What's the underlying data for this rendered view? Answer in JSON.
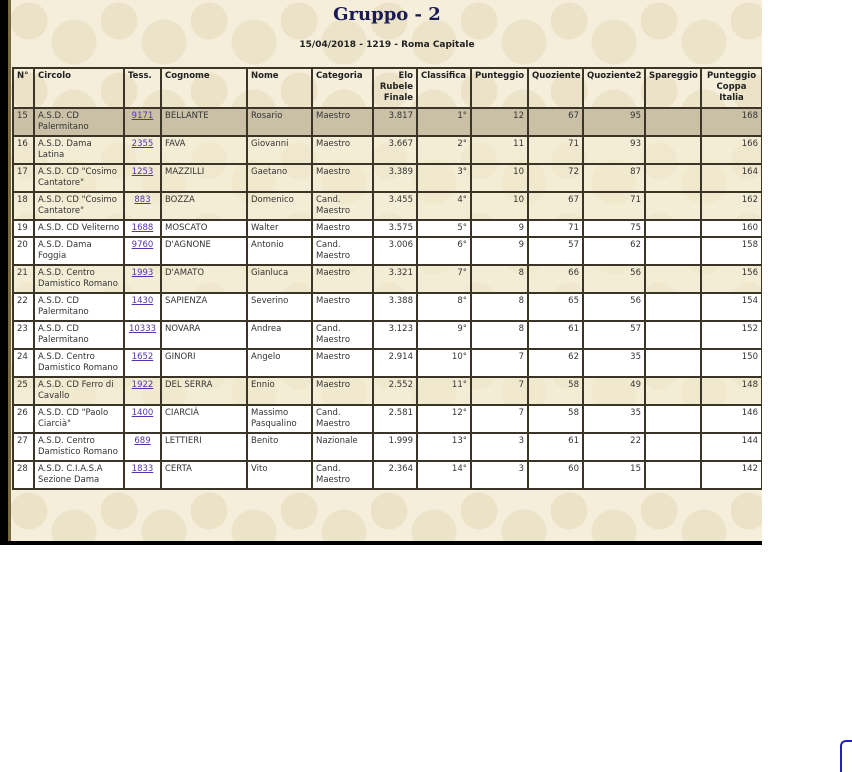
{
  "title": "Gruppo - 2",
  "subtitle": "15/04/2018 - 1219 - Roma Capitale",
  "columns": [
    "N°",
    "Circolo",
    "Tess.",
    "Cognome",
    "Nome",
    "Categoria",
    "Elo Rubele Finale",
    "Classifica",
    "Punteggio",
    "Quoziente",
    "Quoziente2",
    "Spareggio",
    "Punteggio Coppa Italia"
  ],
  "colors": {
    "highlight_row": "#c9c0a6",
    "link": "#5533aa",
    "frame": "#000000",
    "title": "#1a1a55"
  },
  "rows": [
    {
      "n": "15",
      "circolo": "A.S.D. CD Palermitano",
      "tess": "9171",
      "cognome": "BELLANTE",
      "nome": "Rosario",
      "categoria": "Maestro",
      "elo": "3.817",
      "classifica": "1°",
      "punteggio": "12",
      "quoziente": "67",
      "quoziente2": "95",
      "spareggio": "",
      "coppa": "168",
      "style": "hl"
    },
    {
      "n": "16",
      "circolo": "A.S.D. Dama Latina",
      "tess": "2355",
      "cognome": "FAVA",
      "nome": "Giovanni",
      "categoria": "Maestro",
      "elo": "3.667",
      "classifica": "2°",
      "punteggio": "11",
      "quoziente": "71",
      "quoziente2": "93",
      "spareggio": "",
      "coppa": "166",
      "style": "beige"
    },
    {
      "n": "17",
      "circolo": "A.S.D. CD \"Cosimo Cantatore\"",
      "tess": "1253",
      "cognome": "MAZZILLI",
      "nome": "Gaetano",
      "categoria": "Maestro",
      "elo": "3.389",
      "classifica": "3°",
      "punteggio": "10",
      "quoziente": "72",
      "quoziente2": "87",
      "spareggio": "",
      "coppa": "164",
      "style": "beige"
    },
    {
      "n": "18",
      "circolo": "A.S.D. CD \"Cosimo Cantatore\"",
      "tess": "883",
      "cognome": "BOZZA",
      "nome": "Domenico",
      "categoria": "Cand. Maestro",
      "elo": "3.455",
      "classifica": "4°",
      "punteggio": "10",
      "quoziente": "67",
      "quoziente2": "71",
      "spareggio": "",
      "coppa": "162",
      "style": "beige"
    },
    {
      "n": "19",
      "circolo": "A.S.D. CD Veliterno",
      "tess": "1688",
      "cognome": "MOSCATO",
      "nome": "Walter",
      "categoria": "Maestro",
      "elo": "3.575",
      "classifica": "5°",
      "punteggio": "9",
      "quoziente": "71",
      "quoziente2": "75",
      "spareggio": "",
      "coppa": "160",
      "style": "white"
    },
    {
      "n": "20",
      "circolo": "A.S.D. Dama Foggia",
      "tess": "9760",
      "cognome": "D'AGNONE",
      "nome": "Antonio",
      "categoria": "Cand. Maestro",
      "elo": "3.006",
      "classifica": "6°",
      "punteggio": "9",
      "quoziente": "57",
      "quoziente2": "62",
      "spareggio": "",
      "coppa": "158",
      "style": "white"
    },
    {
      "n": "21",
      "circolo": "A.S.D. Centro Damistico Romano",
      "tess": "1993",
      "cognome": "D'AMATO",
      "nome": "Gianluca",
      "categoria": "Maestro",
      "elo": "3.321",
      "classifica": "7°",
      "punteggio": "8",
      "quoziente": "66",
      "quoziente2": "56",
      "spareggio": "",
      "coppa": "156",
      "style": "beige"
    },
    {
      "n": "22",
      "circolo": "A.S.D. CD Palermitano",
      "tess": "1430",
      "cognome": "SAPIENZA",
      "nome": "Severino",
      "categoria": "Maestro",
      "elo": "3.388",
      "classifica": "8°",
      "punteggio": "8",
      "quoziente": "65",
      "quoziente2": "56",
      "spareggio": "",
      "coppa": "154",
      "style": "white"
    },
    {
      "n": "23",
      "circolo": "A.S.D. CD Palermitano",
      "tess": "10333",
      "cognome": "NOVARA",
      "nome": "Andrea",
      "categoria": "Cand. Maestro",
      "elo": "3.123",
      "classifica": "9°",
      "punteggio": "8",
      "quoziente": "61",
      "quoziente2": "57",
      "spareggio": "",
      "coppa": "152",
      "style": "white"
    },
    {
      "n": "24",
      "circolo": "A.S.D. Centro Damistico Romano",
      "tess": "1652",
      "cognome": "GINORI",
      "nome": "Angelo",
      "categoria": "Maestro",
      "elo": "2.914",
      "classifica": "10°",
      "punteggio": "7",
      "quoziente": "62",
      "quoziente2": "35",
      "spareggio": "",
      "coppa": "150",
      "style": "white"
    },
    {
      "n": "25",
      "circolo": "A.S.D. CD Ferro di Cavallo",
      "tess": "1922",
      "cognome": "DEL SERRA",
      "nome": "Ennio",
      "categoria": "Maestro",
      "elo": "2.552",
      "classifica": "11°",
      "punteggio": "7",
      "quoziente": "58",
      "quoziente2": "49",
      "spareggio": "",
      "coppa": "148",
      "style": "beige"
    },
    {
      "n": "26",
      "circolo": "A.S.D. CD \"Paolo Ciarcià\"",
      "tess": "1400",
      "cognome": "CIARCIÀ",
      "nome": "Massimo Pasqualino",
      "categoria": "Cand. Maestro",
      "elo": "2.581",
      "classifica": "12°",
      "punteggio": "7",
      "quoziente": "58",
      "quoziente2": "35",
      "spareggio": "",
      "coppa": "146",
      "style": "white"
    },
    {
      "n": "27",
      "circolo": "A.S.D. Centro Damistico Romano",
      "tess": "689",
      "cognome": "LETTIERI",
      "nome": "Benito",
      "categoria": "Nazionale",
      "elo": "1.999",
      "classifica": "13°",
      "punteggio": "3",
      "quoziente": "61",
      "quoziente2": "22",
      "spareggio": "",
      "coppa": "144",
      "style": "white"
    },
    {
      "n": "28",
      "circolo": "A.S.D. C.I.A.S.A Sezione Dama",
      "tess": "1833",
      "cognome": "CERTA",
      "nome": "Vito",
      "categoria": "Cand. Maestro",
      "elo": "2.364",
      "classifica": "14°",
      "punteggio": "3",
      "quoziente": "60",
      "quoziente2": "15",
      "spareggio": "",
      "coppa": "142",
      "style": "white"
    }
  ]
}
